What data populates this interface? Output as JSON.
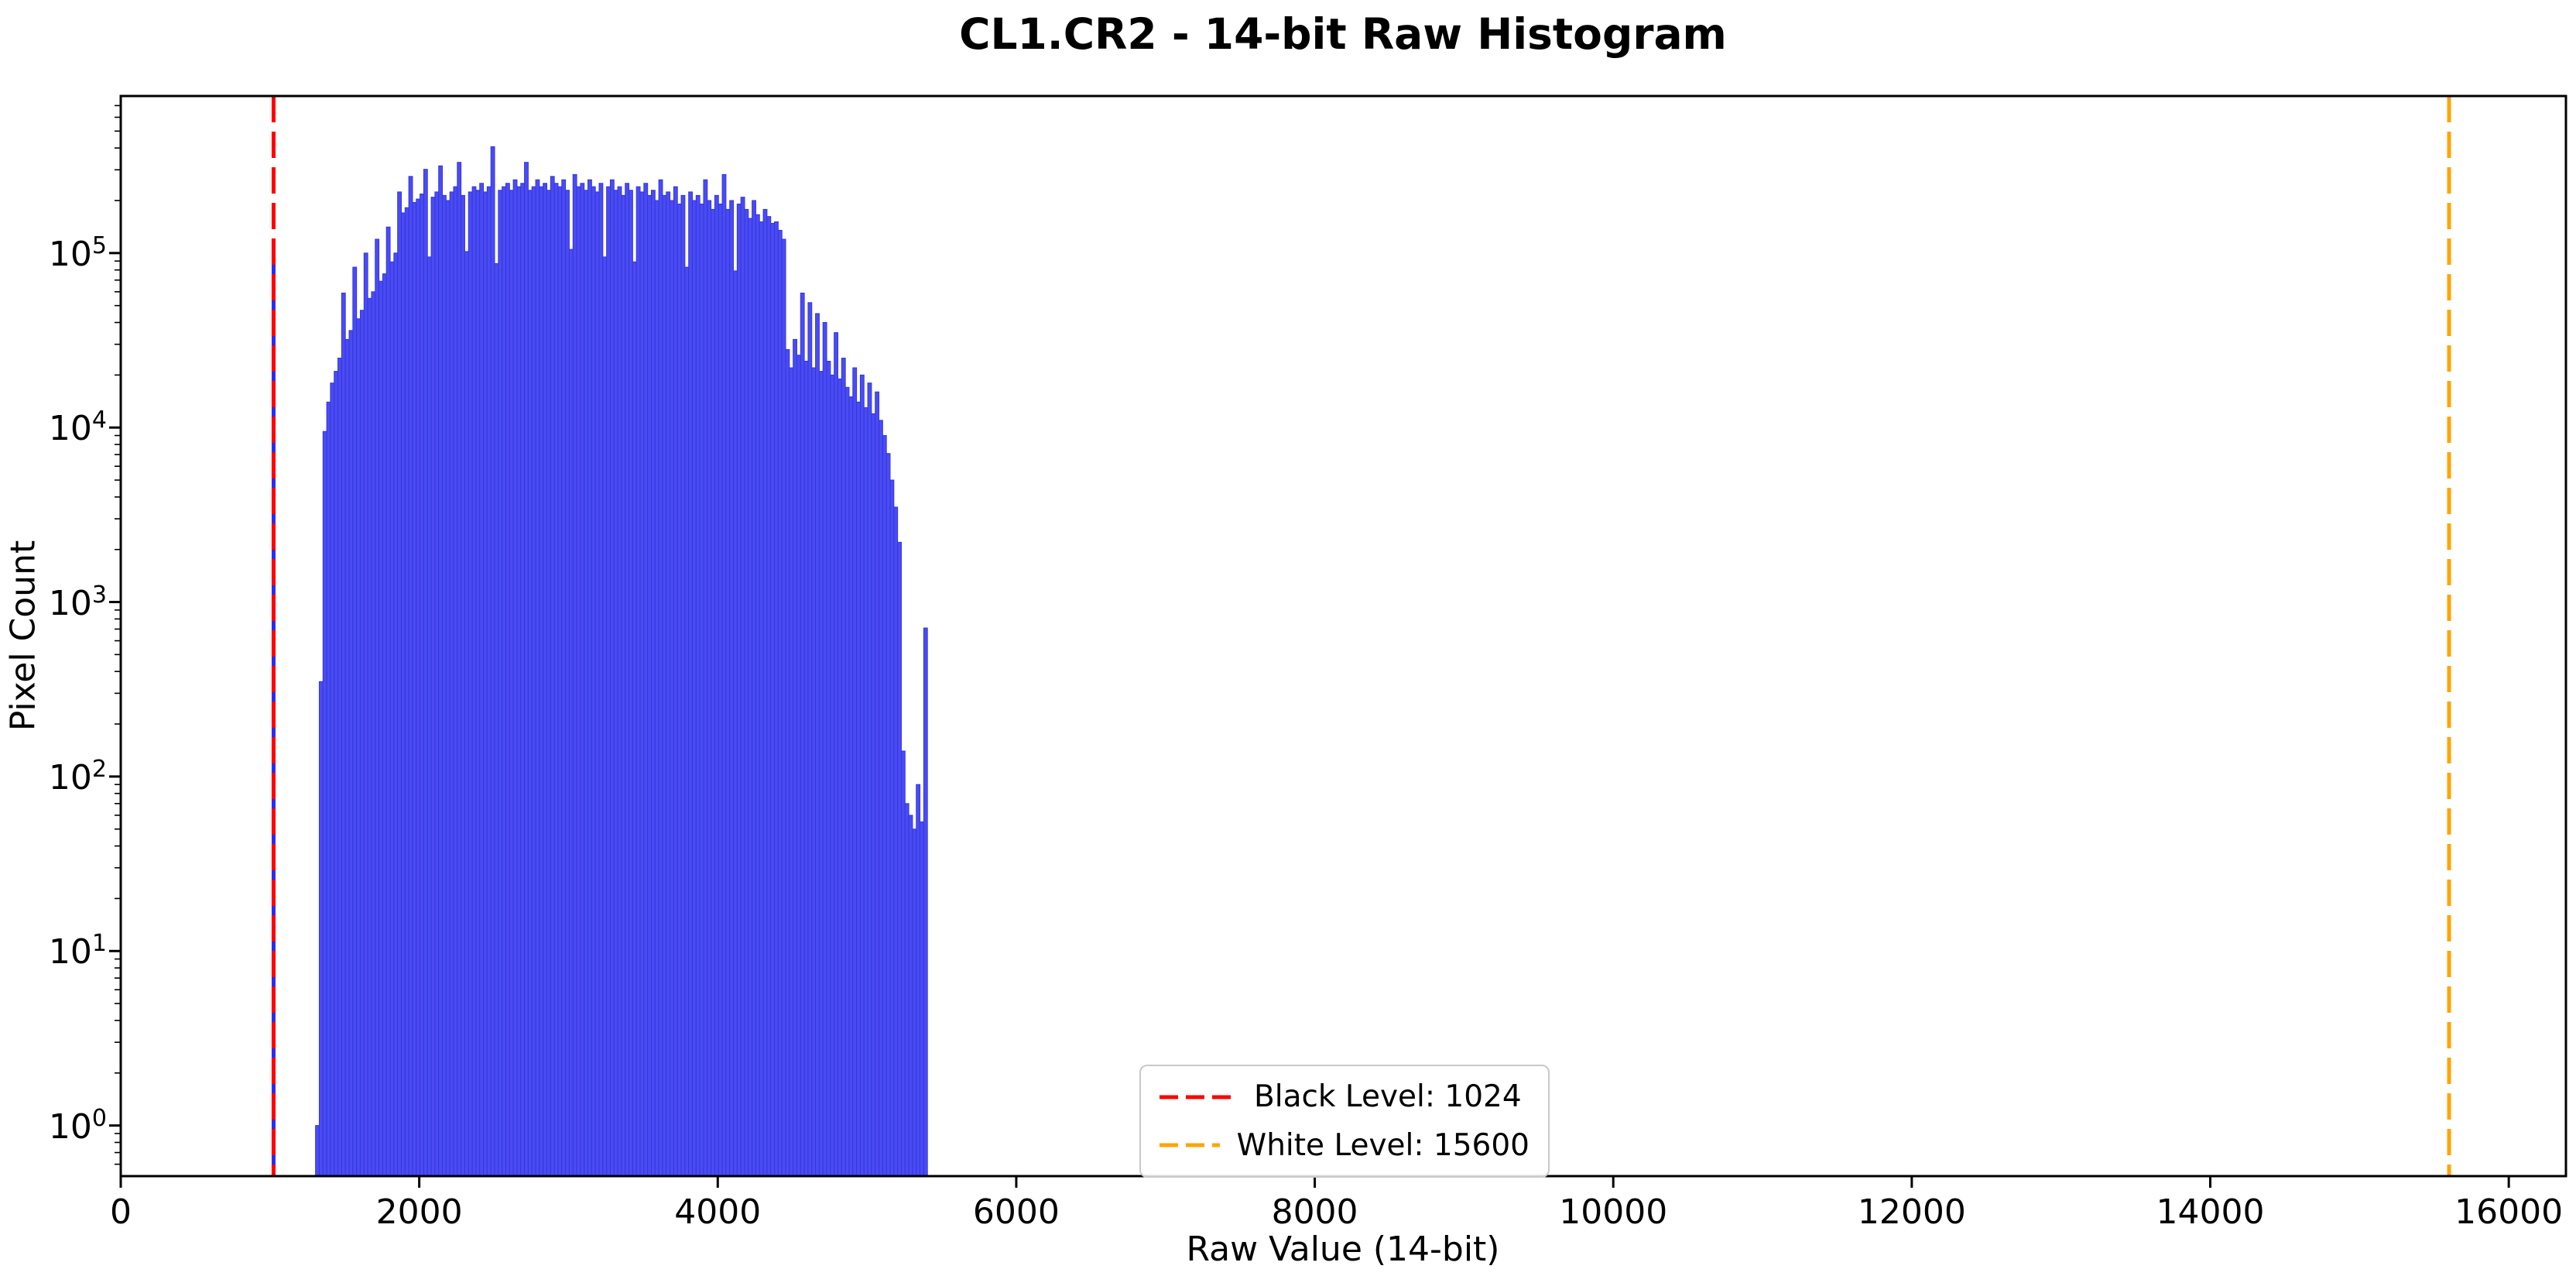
{
  "figure": {
    "title": "CL1.CR2 - 14-bit Raw Histogram"
  },
  "chart_data": {
    "type": "bar",
    "title": "CL1.CR2 - 14-bit Raw Histogram",
    "xlabel": "Raw Value (14-bit)",
    "ylabel": "Pixel Count",
    "y_scale": "log",
    "grid": false,
    "legend_position": "lower center",
    "xlim": [
      0,
      16383
    ],
    "ylim_log10": [
      -0.29,
      5.9
    ],
    "x_ticks": [
      0,
      2000,
      4000,
      6000,
      8000,
      10000,
      12000,
      14000,
      16000
    ],
    "y_tick_exponents": [
      0,
      1,
      2,
      3,
      4,
      5
    ],
    "bar_color": "#4a4cf2",
    "bar_edge_color": "#3335e0",
    "bin_width": 25,
    "black_level": {
      "value": 1024,
      "label": "Black Level: 1024",
      "color": "#ff0000",
      "underlay_color": "#2b2bf5",
      "underlay_top_count": 120000
    },
    "white_level": {
      "value": 15600,
      "label": "White Level: 15600",
      "color": "#ffa500"
    },
    "bars": [
      [
        1305,
        1
      ],
      [
        1330,
        350
      ],
      [
        1355,
        9500
      ],
      [
        1380,
        14000
      ],
      [
        1405,
        18000
      ],
      [
        1430,
        21000
      ],
      [
        1455,
        25000
      ],
      [
        1480,
        59000
      ],
      [
        1505,
        32000
      ],
      [
        1530,
        36000
      ],
      [
        1555,
        83000
      ],
      [
        1580,
        42000
      ],
      [
        1605,
        47000
      ],
      [
        1630,
        100000
      ],
      [
        1655,
        55000
      ],
      [
        1680,
        60000
      ],
      [
        1705,
        120000
      ],
      [
        1730,
        69000
      ],
      [
        1755,
        76000
      ],
      [
        1780,
        141000
      ],
      [
        1805,
        89000
      ],
      [
        1830,
        100000
      ],
      [
        1855,
        224000
      ],
      [
        1880,
        170000
      ],
      [
        1905,
        182000
      ],
      [
        1930,
        275000
      ],
      [
        1955,
        195000
      ],
      [
        1980,
        204000
      ],
      [
        2005,
        218000
      ],
      [
        2030,
        302000
      ],
      [
        2055,
        95000
      ],
      [
        2080,
        209000
      ],
      [
        2105,
        224000
      ],
      [
        2130,
        316000
      ],
      [
        2155,
        214000
      ],
      [
        2180,
        200000
      ],
      [
        2205,
        224000
      ],
      [
        2230,
        240000
      ],
      [
        2255,
        331000
      ],
      [
        2280,
        214000
      ],
      [
        2305,
        102000
      ],
      [
        2330,
        224000
      ],
      [
        2355,
        240000
      ],
      [
        2380,
        229000
      ],
      [
        2405,
        251000
      ],
      [
        2430,
        224000
      ],
      [
        2455,
        240000
      ],
      [
        2480,
        407000
      ],
      [
        2505,
        87000
      ],
      [
        2530,
        229000
      ],
      [
        2555,
        240000
      ],
      [
        2580,
        251000
      ],
      [
        2605,
        229000
      ],
      [
        2630,
        263000
      ],
      [
        2655,
        240000
      ],
      [
        2680,
        251000
      ],
      [
        2705,
        331000
      ],
      [
        2730,
        229000
      ],
      [
        2755,
        240000
      ],
      [
        2780,
        263000
      ],
      [
        2805,
        240000
      ],
      [
        2830,
        251000
      ],
      [
        2855,
        229000
      ],
      [
        2880,
        275000
      ],
      [
        2905,
        251000
      ],
      [
        2930,
        240000
      ],
      [
        2955,
        263000
      ],
      [
        2980,
        229000
      ],
      [
        3005,
        105000
      ],
      [
        3030,
        282000
      ],
      [
        3055,
        240000
      ],
      [
        3080,
        251000
      ],
      [
        3105,
        229000
      ],
      [
        3130,
        263000
      ],
      [
        3155,
        240000
      ],
      [
        3180,
        224000
      ],
      [
        3205,
        251000
      ],
      [
        3230,
        95000
      ],
      [
        3255,
        240000
      ],
      [
        3280,
        263000
      ],
      [
        3305,
        229000
      ],
      [
        3330,
        240000
      ],
      [
        3355,
        214000
      ],
      [
        3380,
        251000
      ],
      [
        3405,
        229000
      ],
      [
        3430,
        89000
      ],
      [
        3455,
        240000
      ],
      [
        3480,
        224000
      ],
      [
        3505,
        251000
      ],
      [
        3530,
        214000
      ],
      [
        3555,
        229000
      ],
      [
        3580,
        200000
      ],
      [
        3605,
        263000
      ],
      [
        3630,
        214000
      ],
      [
        3655,
        224000
      ],
      [
        3680,
        200000
      ],
      [
        3705,
        240000
      ],
      [
        3730,
        191000
      ],
      [
        3755,
        214000
      ],
      [
        3780,
        83000
      ],
      [
        3805,
        224000
      ],
      [
        3830,
        200000
      ],
      [
        3855,
        214000
      ],
      [
        3880,
        191000
      ],
      [
        3905,
        263000
      ],
      [
        3930,
        200000
      ],
      [
        3955,
        178000
      ],
      [
        3980,
        214000
      ],
      [
        4005,
        191000
      ],
      [
        4030,
        282000
      ],
      [
        4055,
        178000
      ],
      [
        4080,
        200000
      ],
      [
        4105,
        79000
      ],
      [
        4130,
        191000
      ],
      [
        4155,
        209000
      ],
      [
        4180,
        178000
      ],
      [
        4205,
        158000
      ],
      [
        4230,
        200000
      ],
      [
        4255,
        166000
      ],
      [
        4280,
        151000
      ],
      [
        4305,
        178000
      ],
      [
        4330,
        162000
      ],
      [
        4355,
        148000
      ],
      [
        4380,
        151000
      ],
      [
        4405,
        135000
      ],
      [
        4430,
        120000
      ],
      [
        4455,
        28000
      ],
      [
        4480,
        22000
      ],
      [
        4505,
        32000
      ],
      [
        4530,
        26000
      ],
      [
        4555,
        59000
      ],
      [
        4580,
        24000
      ],
      [
        4605,
        52000
      ],
      [
        4630,
        22000
      ],
      [
        4655,
        45000
      ],
      [
        4680,
        21000
      ],
      [
        4705,
        40000
      ],
      [
        4730,
        24000
      ],
      [
        4755,
        20000
      ],
      [
        4780,
        35000
      ],
      [
        4805,
        19000
      ],
      [
        4830,
        25000
      ],
      [
        4855,
        17000
      ],
      [
        4880,
        15000
      ],
      [
        4905,
        22000
      ],
      [
        4930,
        14000
      ],
      [
        4955,
        20000
      ],
      [
        4980,
        13000
      ],
      [
        5005,
        18000
      ],
      [
        5030,
        12000
      ],
      [
        5055,
        16000
      ],
      [
        5080,
        11000
      ],
      [
        5105,
        9000
      ],
      [
        5130,
        7100
      ],
      [
        5155,
        5000
      ],
      [
        5180,
        3500
      ],
      [
        5205,
        2200
      ],
      [
        5230,
        140
      ],
      [
        5255,
        70
      ],
      [
        5280,
        60
      ],
      [
        5305,
        50
      ],
      [
        5330,
        90
      ],
      [
        5355,
        55
      ],
      [
        5380,
        710
      ]
    ]
  },
  "legend": {
    "items": [
      {
        "label": "Black Level: 1024",
        "color": "#ff0000"
      },
      {
        "label": "White Level: 15600",
        "color": "#ffa500"
      }
    ]
  }
}
